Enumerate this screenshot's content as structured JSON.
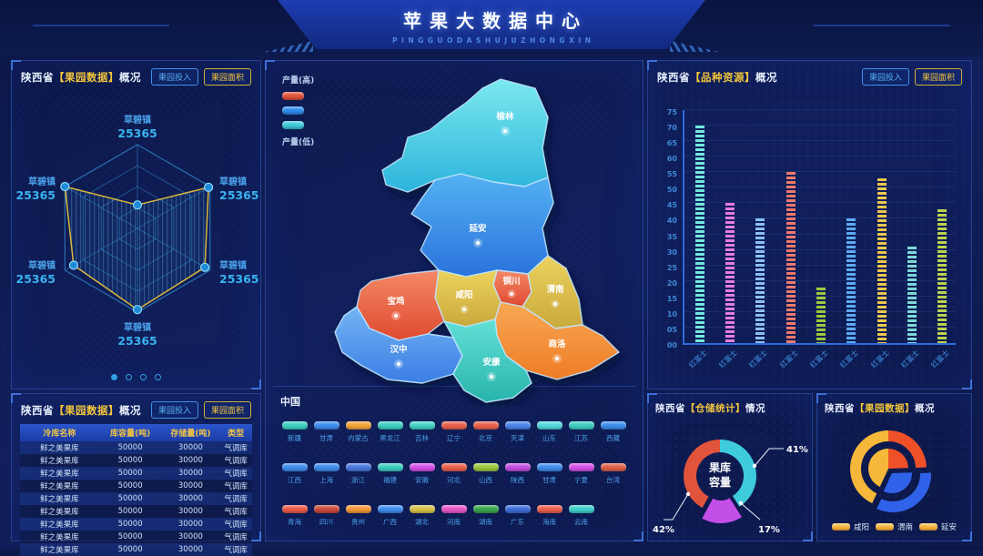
{
  "header": {
    "title": "苹果大数据中心",
    "subtitle": "PINGGUODASHUJUZHONGXIN"
  },
  "panels": {
    "radar": {
      "title_prefix": "陕西省",
      "title_highlight": "【果园数据】",
      "title_suffix": "概况",
      "button_blue": "果园投入",
      "button_yellow": "果园面积",
      "axes": [
        {
          "name": "草碧镇",
          "value": "25365"
        },
        {
          "name": "草碧镇",
          "value": "25365"
        },
        {
          "name": "草碧镇",
          "value": "25365"
        },
        {
          "name": "草碧镇",
          "value": "25365"
        },
        {
          "name": "草碧镇",
          "value": "25365"
        },
        {
          "name": "草碧镇",
          "value": "25365"
        }
      ]
    },
    "table": {
      "title_prefix": "陕西省",
      "title_highlight": "【果园数据】",
      "title_suffix": "概况",
      "button_blue": "果园投入",
      "button_yellow": "果园面积",
      "columns": [
        "冷库名称",
        "库容量(吨)",
        "存储量(吨)",
        "类型"
      ],
      "rows": [
        [
          "鲜之美果库",
          "50000",
          "30000",
          "气调库"
        ],
        [
          "鲜之美果库",
          "50000",
          "30000",
          "气调库"
        ],
        [
          "鲜之美果库",
          "50000",
          "30000",
          "气调库"
        ],
        [
          "鲜之美果库",
          "50000",
          "30000",
          "气调库"
        ],
        [
          "鲜之美果库",
          "50000",
          "30000",
          "气调库"
        ],
        [
          "鲜之美果库",
          "50000",
          "30000",
          "气调库"
        ],
        [
          "鲜之美果库",
          "50000",
          "30000",
          "气调库"
        ],
        [
          "鲜之美果库",
          "50000",
          "30000",
          "气调库"
        ],
        [
          "鲜之美果库",
          "50000",
          "30000",
          "气调库"
        ]
      ]
    },
    "map": {
      "legend_high": "产量(高)",
      "legend_low": "产量(低)",
      "legend_colors": [
        "#e2533b",
        "#2f8ded",
        "#3ecbdc"
      ],
      "cities": [
        {
          "name": "榆林"
        },
        {
          "name": "延安"
        },
        {
          "name": "铜川"
        },
        {
          "name": "渭南"
        },
        {
          "name": "咸阳"
        },
        {
          "name": "宝鸡"
        },
        {
          "name": "商洛"
        },
        {
          "name": "汉中"
        },
        {
          "name": "安康"
        }
      ]
    },
    "china": {
      "title": "中国",
      "rows": [
        [
          {
            "label": "新疆",
            "color": "#3ecfc0"
          },
          {
            "label": "甘肃",
            "color": "#3e8ded"
          },
          {
            "label": "内蒙古",
            "color": "#f2a43a"
          },
          {
            "label": "黑龙江",
            "color": "#3ecfc0"
          },
          {
            "label": "吉林",
            "color": "#45d4c8"
          },
          {
            "label": "辽宁",
            "color": "#ec614c"
          },
          {
            "label": "北京",
            "color": "#ec614c"
          },
          {
            "label": "天津",
            "color": "#4a86ec"
          },
          {
            "label": "山东",
            "color": "#52d8dc"
          },
          {
            "label": "江苏",
            "color": "#3ecfc0"
          },
          {
            "label": "西藏",
            "color": "#3e8ded"
          }
        ],
        [
          {
            "label": "江西",
            "color": "#3e8ded"
          },
          {
            "label": "上海",
            "color": "#3e8ded"
          },
          {
            "label": "浙江",
            "color": "#4a78dc"
          },
          {
            "label": "福建",
            "color": "#3ecfc0"
          },
          {
            "label": "安徽",
            "color": "#d44fe8"
          },
          {
            "label": "河北",
            "color": "#ec614c"
          },
          {
            "label": "山西",
            "color": "#9cc83e"
          },
          {
            "label": "陕西",
            "color": "#c44fe0"
          },
          {
            "label": "甘肃",
            "color": "#3e8ded"
          },
          {
            "label": "宁夏",
            "color": "#d44fe8"
          },
          {
            "label": "台湾",
            "color": "#e06048"
          }
        ],
        [
          {
            "label": "青海",
            "color": "#ec5a48"
          },
          {
            "label": "四川",
            "color": "#cc4a38"
          },
          {
            "label": "贵州",
            "color": "#f29a3a"
          },
          {
            "label": "广西",
            "color": "#3e8ded"
          },
          {
            "label": "湖北",
            "color": "#d8c24a"
          },
          {
            "label": "河南",
            "color": "#e858c4"
          },
          {
            "label": "湖南",
            "color": "#3aa64c"
          },
          {
            "label": "广东",
            "color": "#3e6ed8"
          },
          {
            "label": "海南",
            "color": "#ec614c"
          },
          {
            "label": "云南",
            "color": "#3ecfc8"
          }
        ]
      ]
    },
    "bar": {
      "title_prefix": "陕西省",
      "title_highlight": "【品种资源】",
      "title_suffix": "概况",
      "button_blue": "果园投入",
      "button_yellow": "果园面积"
    },
    "donut": {
      "title_prefix": "陕西省",
      "title_highlight": "【仓储统计】",
      "title_suffix": "情况",
      "center_line1": "果库",
      "center_line2": "容量"
    },
    "pie": {
      "title_prefix": "陕西省",
      "title_highlight": "【果园数据】",
      "title_suffix": "概况",
      "legend": [
        "咸阳",
        "渭南",
        "延安"
      ]
    }
  },
  "chart_data": [
    {
      "type": "radar",
      "title": "陕西省【果园数据】概况",
      "categories": [
        "草碧镇",
        "草碧镇",
        "草碧镇",
        "草碧镇",
        "草碧镇",
        "草碧镇"
      ],
      "values": [
        25365,
        25365,
        25365,
        25365,
        25365,
        25365
      ],
      "levels": 4,
      "line_color": "#d8b83c",
      "point_color": "#1f8ad8"
    },
    {
      "type": "bar",
      "title": "陕西省【品种资源】概况",
      "categories": [
        "红富士",
        "红富士",
        "红富士",
        "红富士",
        "红富士",
        "红富士",
        "红富士",
        "红富士",
        "红富士"
      ],
      "values": [
        70,
        45,
        40,
        55,
        18,
        40,
        53,
        31,
        43
      ],
      "ylim": [
        0,
        75
      ],
      "ytick_step": 5,
      "grid": true,
      "colors": [
        "#72e8dc",
        "#e87ce0",
        "#8cc0f2",
        "#f2796a",
        "#9cc93e",
        "#5caaf2",
        "#ecc84e",
        "#7cd8d8",
        "#bcd24e"
      ]
    },
    {
      "type": "pie",
      "subtype": "donut",
      "title": "陕西省【仓储统计】情况",
      "center_label": "果库容量",
      "labels": [
        "41%",
        "17%",
        "42%"
      ],
      "values": [
        41,
        17,
        42
      ],
      "colors": [
        "#3ecbdc",
        "#c44fe8",
        "#e2533b"
      ]
    },
    {
      "type": "pie",
      "subtype": "ring-and-inner-pie",
      "title": "陕西省【果园数据】概况",
      "labels": [
        "咸阳",
        "渭南",
        "延安"
      ],
      "values": [
        43,
        24,
        33
      ],
      "colors": [
        "#f5b83a",
        "#f05028",
        "#2f62e8"
      ],
      "legend_position": "bottom"
    }
  ]
}
